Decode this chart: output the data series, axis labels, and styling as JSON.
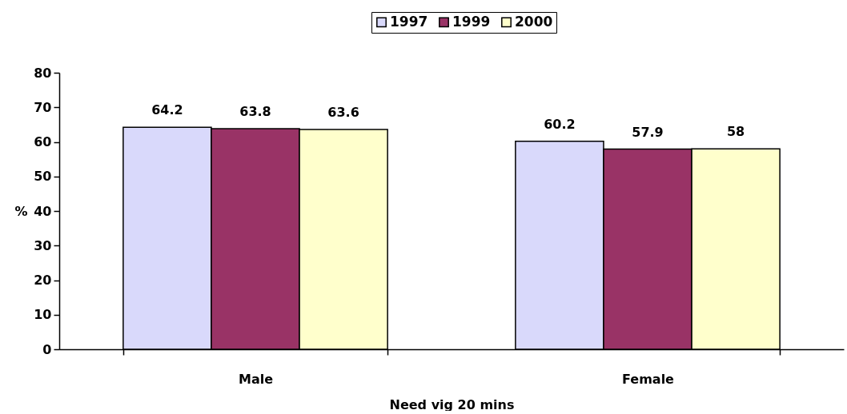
{
  "chart_data": {
    "type": "bar",
    "xlabel": "Need vig 20 mins",
    "ylabel": "%",
    "categories": [
      "Male",
      "Female"
    ],
    "series": [
      {
        "name": "1997",
        "color": "#d9d9fb",
        "values": [
          64.2,
          60.2
        ]
      },
      {
        "name": "1999",
        "color": "#993366",
        "values": [
          63.8,
          57.9
        ]
      },
      {
        "name": "2000",
        "color": "#ffffcc",
        "values": [
          63.6,
          58
        ]
      }
    ],
    "ylim": [
      0,
      80
    ],
    "yticks": [
      0,
      10,
      20,
      30,
      40,
      50,
      60,
      70,
      80
    ],
    "grid": false,
    "legend": "top",
    "data_labels": true
  }
}
